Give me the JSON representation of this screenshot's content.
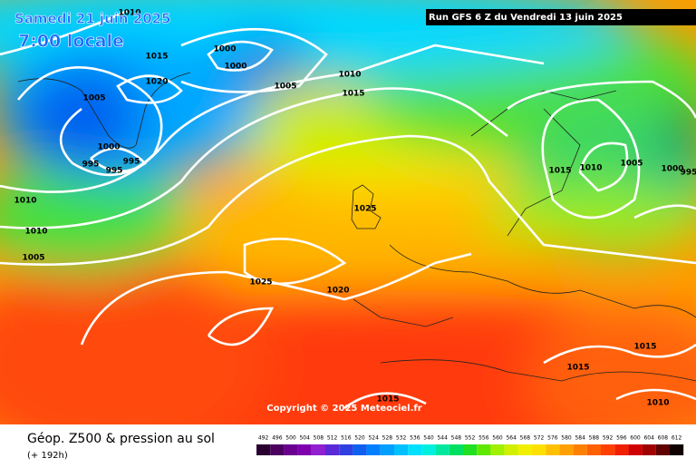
{
  "header": {
    "title": "Samedi 21 juin 2025",
    "time": "7:00 locale",
    "run": "Run GFS 6 Z du Vendredi 13 juin 2025"
  },
  "copyright": "Copyright © 2025 Meteociel.fr",
  "isobar_labels": [
    "1010",
    "1015",
    "1000",
    "1000",
    "1020",
    "1005",
    "1010",
    "1015",
    "1005",
    "1000",
    "995",
    "995",
    "995",
    "1010",
    "1010",
    "1005",
    "1025",
    "1025",
    "1020",
    "1015",
    "1010",
    "1005",
    "1000",
    "995",
    "1015",
    "1015",
    "1010",
    "1015"
  ],
  "legend": {
    "title": "Géop. Z500 & pression au sol",
    "lead": "(+ 192h)",
    "values": [
      492,
      496,
      500,
      504,
      508,
      512,
      516,
      520,
      524,
      528,
      532,
      536,
      540,
      544,
      548,
      552,
      556,
      560,
      564,
      568,
      572,
      576,
      580,
      584,
      588,
      592,
      596,
      600,
      604,
      608,
      612
    ],
    "colors": [
      "#2a0030",
      "#4b0060",
      "#6a0090",
      "#8000b0",
      "#9020d0",
      "#5a2ad8",
      "#3040e0",
      "#1060f0",
      "#0080ff",
      "#00a0ff",
      "#00c0ff",
      "#00e0ff",
      "#00f0e0",
      "#00e8a0",
      "#00e060",
      "#20e020",
      "#60e800",
      "#a0f000",
      "#d0f000",
      "#f0f000",
      "#ffe000",
      "#ffc000",
      "#ffa000",
      "#ff8000",
      "#ff6000",
      "#ff4000",
      "#f02000",
      "#d00000",
      "#a00000",
      "#600000",
      "#100000"
    ]
  }
}
